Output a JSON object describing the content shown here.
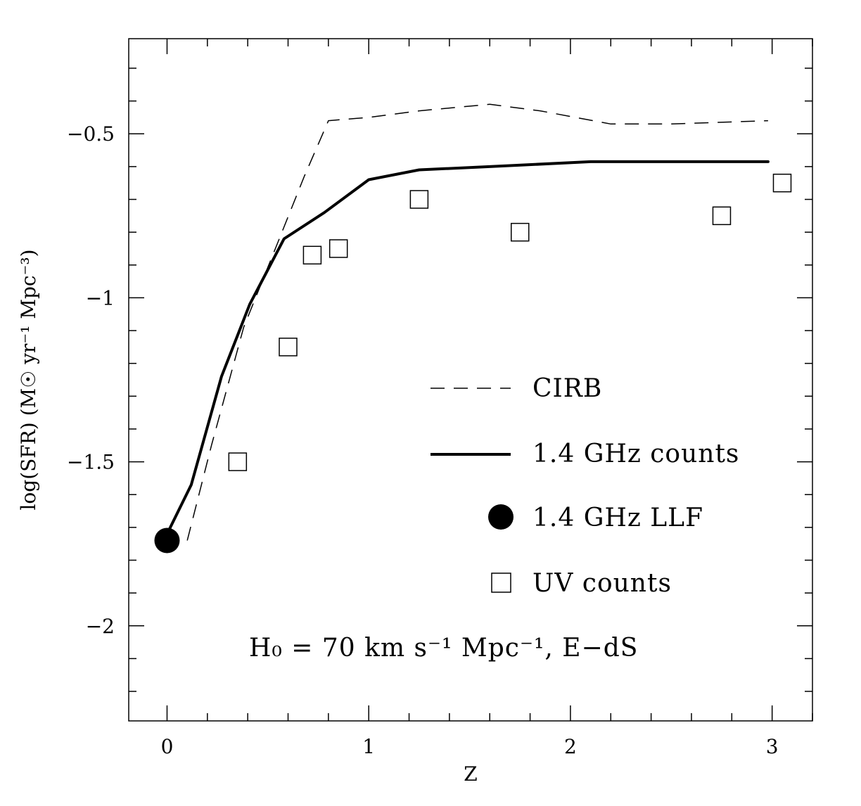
{
  "chart_data": {
    "type": "line",
    "xlabel": "Z",
    "ylabel": "log(SFR) (M☉ yr⁻¹ Mpc⁻³)",
    "xlim": [
      -0.19,
      3.2
    ],
    "ylim": [
      -2.29,
      -0.21
    ],
    "x_ticks": [
      0,
      1,
      2,
      3
    ],
    "x_tick_labels": [
      "0",
      "1",
      "2",
      "3"
    ],
    "y_ticks": [
      -2,
      -1.5,
      -1,
      -0.5
    ],
    "y_tick_labels": [
      "−2",
      "−1.5",
      "−1",
      "−0.5"
    ],
    "x_minor_step": 0.2,
    "y_minor_step": 0.1,
    "grid": false,
    "legend_position": "right",
    "annotation": "H₀ = 70 km s⁻¹ Mpc⁻¹, E−dS",
    "series": [
      {
        "name": "CIRB",
        "style": "dashed",
        "color": "#000000",
        "x": [
          0.1,
          0.22,
          0.38,
          0.55,
          0.68,
          0.8,
          1.0,
          1.25,
          1.6,
          1.85,
          2.2,
          2.5,
          2.98
        ],
        "y": [
          -1.74,
          -1.45,
          -1.09,
          -0.83,
          -0.63,
          -0.46,
          -0.45,
          -0.43,
          -0.41,
          -0.43,
          -0.47,
          -0.47,
          -0.46
        ]
      },
      {
        "name": "1.4 GHz counts",
        "style": "solid",
        "color": "#000000",
        "x": [
          0.0,
          0.12,
          0.27,
          0.41,
          0.58,
          0.78,
          1.0,
          1.25,
          1.6,
          2.1,
          2.98
        ],
        "y": [
          -1.72,
          -1.57,
          -1.24,
          -1.02,
          -0.82,
          -0.74,
          -0.64,
          -0.61,
          -0.6,
          -0.585,
          -0.585
        ]
      },
      {
        "name": "1.4 GHz LLF",
        "style": "filled-circle",
        "color": "#000000",
        "x": [
          0.0
        ],
        "y": [
          -1.74
        ]
      },
      {
        "name": "UV counts",
        "style": "open-square",
        "color": "#000000",
        "x": [
          0.35,
          0.6,
          0.72,
          0.85,
          1.25,
          1.75,
          2.75,
          3.05
        ],
        "y": [
          -1.5,
          -1.15,
          -0.87,
          -0.85,
          -0.7,
          -0.8,
          -0.75,
          -0.65
        ]
      }
    ]
  }
}
